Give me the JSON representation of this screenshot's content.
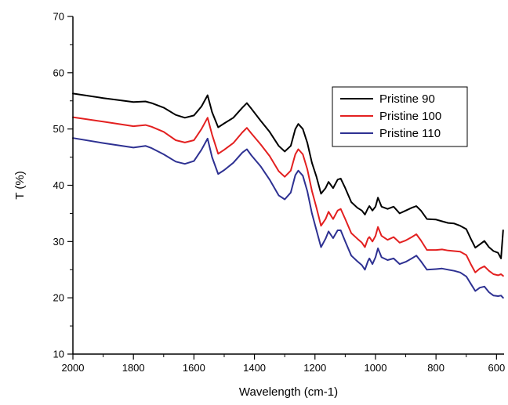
{
  "chart_data": {
    "type": "line",
    "title": "",
    "xlabel": "Wavelength (cm-1)",
    "ylabel": "T (%)",
    "xlim": [
      2000,
      575
    ],
    "ylim": [
      10,
      70
    ],
    "x_reversed": true,
    "x_ticks": [
      2000,
      1800,
      1600,
      1400,
      1200,
      1000,
      800,
      600
    ],
    "y_ticks": [
      10,
      20,
      30,
      40,
      50,
      60,
      70
    ],
    "grid": false,
    "legend_position": "top-right",
    "series": [
      {
        "name": "Pristine 90",
        "color": "#000000",
        "points": [
          [
            2000,
            56.3
          ],
          [
            1900,
            55.5
          ],
          [
            1800,
            54.8
          ],
          [
            1760,
            54.9
          ],
          [
            1740,
            54.6
          ],
          [
            1700,
            53.8
          ],
          [
            1660,
            52.5
          ],
          [
            1630,
            52.0
          ],
          [
            1600,
            52.4
          ],
          [
            1575,
            54.0
          ],
          [
            1555,
            56.0
          ],
          [
            1540,
            53.0
          ],
          [
            1520,
            50.3
          ],
          [
            1500,
            51.0
          ],
          [
            1470,
            52.0
          ],
          [
            1440,
            53.8
          ],
          [
            1425,
            54.6
          ],
          [
            1410,
            53.6
          ],
          [
            1380,
            51.5
          ],
          [
            1350,
            49.5
          ],
          [
            1320,
            47.0
          ],
          [
            1300,
            46.0
          ],
          [
            1280,
            47.0
          ],
          [
            1265,
            50.0
          ],
          [
            1255,
            50.9
          ],
          [
            1240,
            50.0
          ],
          [
            1225,
            47.5
          ],
          [
            1210,
            44.0
          ],
          [
            1195,
            41.5
          ],
          [
            1180,
            38.5
          ],
          [
            1165,
            39.5
          ],
          [
            1155,
            40.6
          ],
          [
            1140,
            39.5
          ],
          [
            1125,
            41.0
          ],
          [
            1115,
            41.2
          ],
          [
            1100,
            39.5
          ],
          [
            1080,
            37.0
          ],
          [
            1060,
            36.0
          ],
          [
            1045,
            35.5
          ],
          [
            1035,
            34.8
          ],
          [
            1025,
            35.9
          ],
          [
            1020,
            36.3
          ],
          [
            1010,
            35.5
          ],
          [
            1000,
            36.2
          ],
          [
            992,
            37.8
          ],
          [
            980,
            36.2
          ],
          [
            960,
            35.8
          ],
          [
            940,
            36.2
          ],
          [
            920,
            35.0
          ],
          [
            900,
            35.5
          ],
          [
            880,
            36.0
          ],
          [
            865,
            36.3
          ],
          [
            850,
            35.5
          ],
          [
            830,
            34.0
          ],
          [
            800,
            33.9
          ],
          [
            780,
            33.6
          ],
          [
            760,
            33.3
          ],
          [
            740,
            33.2
          ],
          [
            720,
            32.8
          ],
          [
            700,
            32.2
          ],
          [
            685,
            30.5
          ],
          [
            670,
            28.9
          ],
          [
            655,
            29.5
          ],
          [
            640,
            30.1
          ],
          [
            625,
            29.0
          ],
          [
            610,
            28.3
          ],
          [
            595,
            28.0
          ],
          [
            585,
            27.0
          ],
          [
            578,
            32.0
          ]
        ]
      },
      {
        "name": "Pristine 100",
        "color": "#e32020",
        "points": [
          [
            2000,
            52.1
          ],
          [
            1900,
            51.3
          ],
          [
            1800,
            50.5
          ],
          [
            1760,
            50.7
          ],
          [
            1740,
            50.4
          ],
          [
            1700,
            49.5
          ],
          [
            1660,
            48.0
          ],
          [
            1630,
            47.6
          ],
          [
            1600,
            48.0
          ],
          [
            1575,
            50.0
          ],
          [
            1555,
            52.0
          ],
          [
            1540,
            49.0
          ],
          [
            1520,
            45.6
          ],
          [
            1500,
            46.3
          ],
          [
            1470,
            47.5
          ],
          [
            1440,
            49.4
          ],
          [
            1425,
            50.2
          ],
          [
            1410,
            49.2
          ],
          [
            1380,
            47.3
          ],
          [
            1350,
            45.2
          ],
          [
            1320,
            42.5
          ],
          [
            1300,
            41.5
          ],
          [
            1280,
            42.6
          ],
          [
            1265,
            45.5
          ],
          [
            1255,
            46.4
          ],
          [
            1240,
            45.5
          ],
          [
            1225,
            42.8
          ],
          [
            1210,
            39.0
          ],
          [
            1195,
            36.0
          ],
          [
            1180,
            32.8
          ],
          [
            1165,
            34.0
          ],
          [
            1155,
            35.3
          ],
          [
            1140,
            34.0
          ],
          [
            1125,
            35.5
          ],
          [
            1115,
            35.8
          ],
          [
            1100,
            34.0
          ],
          [
            1080,
            31.5
          ],
          [
            1060,
            30.5
          ],
          [
            1045,
            29.8
          ],
          [
            1035,
            29.0
          ],
          [
            1025,
            30.5
          ],
          [
            1020,
            30.8
          ],
          [
            1010,
            30.0
          ],
          [
            1000,
            31.0
          ],
          [
            992,
            32.6
          ],
          [
            980,
            31.0
          ],
          [
            960,
            30.3
          ],
          [
            940,
            30.8
          ],
          [
            920,
            29.8
          ],
          [
            900,
            30.2
          ],
          [
            880,
            30.8
          ],
          [
            865,
            31.3
          ],
          [
            850,
            30.2
          ],
          [
            830,
            28.5
          ],
          [
            800,
            28.5
          ],
          [
            780,
            28.6
          ],
          [
            760,
            28.4
          ],
          [
            740,
            28.3
          ],
          [
            720,
            28.2
          ],
          [
            700,
            27.6
          ],
          [
            685,
            26.0
          ],
          [
            670,
            24.5
          ],
          [
            655,
            25.2
          ],
          [
            640,
            25.6
          ],
          [
            625,
            24.8
          ],
          [
            610,
            24.2
          ],
          [
            595,
            24.0
          ],
          [
            585,
            24.2
          ],
          [
            578,
            23.9
          ]
        ]
      },
      {
        "name": "Pristine 110",
        "color": "#2e3192",
        "points": [
          [
            2000,
            48.4
          ],
          [
            1900,
            47.5
          ],
          [
            1800,
            46.7
          ],
          [
            1760,
            47.0
          ],
          [
            1740,
            46.6
          ],
          [
            1700,
            45.5
          ],
          [
            1660,
            44.2
          ],
          [
            1630,
            43.8
          ],
          [
            1600,
            44.3
          ],
          [
            1575,
            46.3
          ],
          [
            1555,
            48.3
          ],
          [
            1540,
            45.0
          ],
          [
            1520,
            42.0
          ],
          [
            1500,
            42.7
          ],
          [
            1470,
            44.0
          ],
          [
            1440,
            45.8
          ],
          [
            1425,
            46.4
          ],
          [
            1410,
            45.3
          ],
          [
            1380,
            43.4
          ],
          [
            1350,
            41.0
          ],
          [
            1320,
            38.2
          ],
          [
            1300,
            37.5
          ],
          [
            1280,
            38.7
          ],
          [
            1265,
            41.8
          ],
          [
            1255,
            42.6
          ],
          [
            1240,
            41.7
          ],
          [
            1225,
            38.9
          ],
          [
            1210,
            35.0
          ],
          [
            1195,
            32.0
          ],
          [
            1180,
            29.0
          ],
          [
            1165,
            30.5
          ],
          [
            1155,
            31.8
          ],
          [
            1140,
            30.6
          ],
          [
            1125,
            32.0
          ],
          [
            1115,
            32.0
          ],
          [
            1100,
            30.0
          ],
          [
            1080,
            27.5
          ],
          [
            1060,
            26.5
          ],
          [
            1045,
            25.8
          ],
          [
            1035,
            25.0
          ],
          [
            1025,
            26.5
          ],
          [
            1020,
            27.0
          ],
          [
            1010,
            26.0
          ],
          [
            1000,
            27.2
          ],
          [
            992,
            28.8
          ],
          [
            980,
            27.2
          ],
          [
            960,
            26.7
          ],
          [
            940,
            27.0
          ],
          [
            920,
            26.0
          ],
          [
            900,
            26.4
          ],
          [
            880,
            27.0
          ],
          [
            865,
            27.5
          ],
          [
            850,
            26.5
          ],
          [
            830,
            25.0
          ],
          [
            800,
            25.1
          ],
          [
            780,
            25.2
          ],
          [
            760,
            25.0
          ],
          [
            740,
            24.8
          ],
          [
            720,
            24.5
          ],
          [
            700,
            23.8
          ],
          [
            685,
            22.5
          ],
          [
            670,
            21.2
          ],
          [
            655,
            21.8
          ],
          [
            640,
            22.0
          ],
          [
            625,
            21.0
          ],
          [
            610,
            20.4
          ],
          [
            595,
            20.3
          ],
          [
            585,
            20.4
          ],
          [
            578,
            20.0
          ]
        ]
      }
    ]
  }
}
